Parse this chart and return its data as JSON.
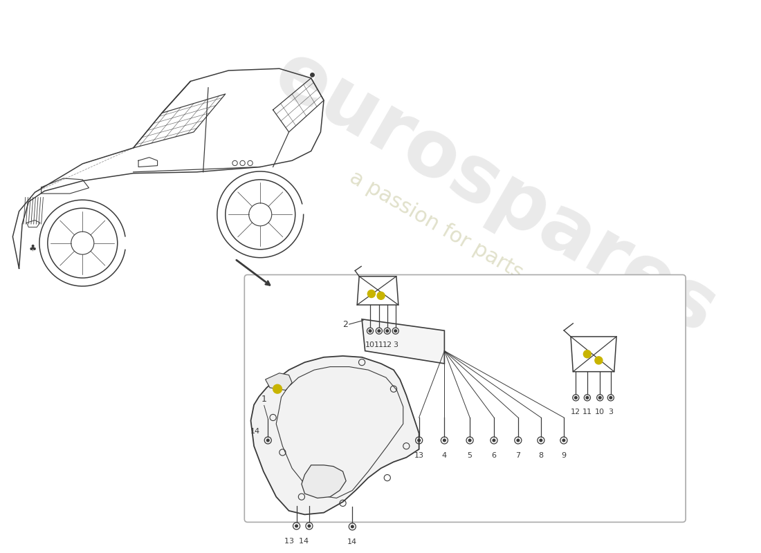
{
  "bg_color": "#ffffff",
  "line_color": "#3a3a3a",
  "highlight_color": "#c8b400",
  "watermark_color_es": "#cccccc",
  "watermark_color_text": "#c8c8a0",
  "box_border": "#999999",
  "label_fontsize": 9,
  "small_label_fontsize": 8
}
